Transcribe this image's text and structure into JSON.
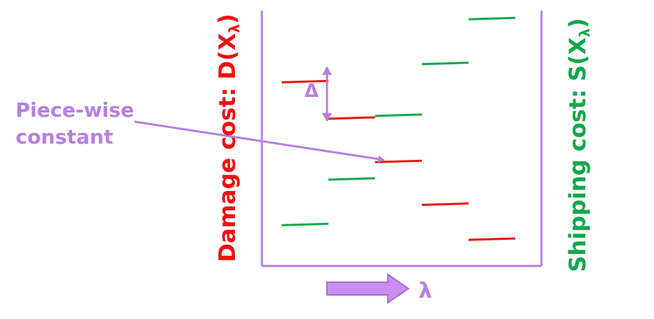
{
  "labels": {
    "left_axis_prefix": "Damage cost: D(X",
    "left_axis_sub": "λ",
    "left_axis_suffix": ")",
    "right_axis_prefix": "Shipping cost: S(X",
    "right_axis_sub": "λ",
    "right_axis_suffix": ")",
    "x_symbol": "λ",
    "delta_symbol": "Δ",
    "annotation_line1": "Piece-wise",
    "annotation_line2": "constant"
  },
  "colors": {
    "damage": "#ee1111",
    "shipping": "#11a84a",
    "accent": "#b77fe0",
    "axis": "#b77fe0"
  },
  "series": {
    "damage_levels": [
      8,
      6.3,
      4.2,
      2.2,
      0.5
    ],
    "shipping_levels": [
      1.2,
      3.4,
      6.4,
      8.9,
      11.0
    ]
  }
}
